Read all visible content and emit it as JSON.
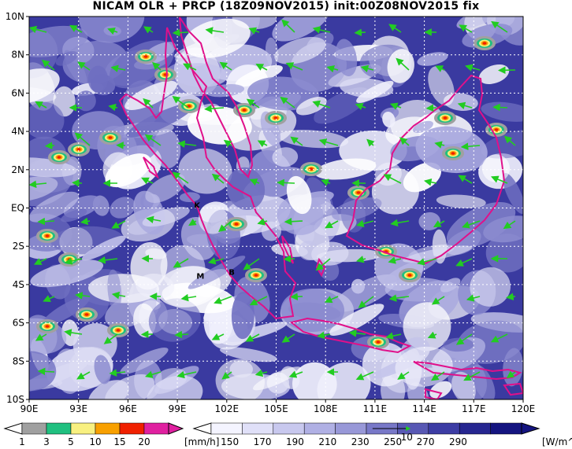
{
  "title": "NICAM OLR + PRCP (18Z09NOV2015) init:00Z08NOV2015 fix",
  "map": {
    "lon_ticks": [
      "90E",
      "93E",
      "96E",
      "99E",
      "102E",
      "105E",
      "108E",
      "111E",
      "114E",
      "117E",
      "120E"
    ],
    "lat_ticks": [
      "10N",
      "8N",
      "6N",
      "4N",
      "2N",
      "EQ",
      "2S",
      "4S",
      "6S",
      "8S",
      "10S"
    ],
    "lon_range": [
      90,
      120
    ],
    "lat_range": [
      -10,
      10
    ],
    "grid": true
  },
  "places": [
    {
      "label": "K",
      "lon": 100.2,
      "lat": 0.0
    },
    {
      "label": "M",
      "lon": 100.4,
      "lat": -3.7
    },
    {
      "label": "B",
      "lon": 102.3,
      "lat": -3.5
    }
  ],
  "precip_colorbar": {
    "labels": [
      "1",
      "3",
      "5",
      "10",
      "15",
      "20"
    ],
    "unit": "[mm/h]",
    "colors": [
      "#a0a0a0",
      "#20c080",
      "#f8f080",
      "#f8a000",
      "#f02000",
      "#e020a0"
    ]
  },
  "olr_colorbar": {
    "labels": [
      "150",
      "170",
      "190",
      "210",
      "230",
      "250",
      "270",
      "290"
    ],
    "unit": "[W/m^2]",
    "vector_label": "10",
    "colors": [
      "#f4f4ff",
      "#e0e0f8",
      "#c8c8ee",
      "#b0b0e4",
      "#9898d8",
      "#7878c8",
      "#5858b4",
      "#3c3ca4",
      "#262690",
      "#141480"
    ]
  },
  "colors": {
    "olr_cold": "#1a1a88",
    "olr_mid": "#5a5ab8",
    "olr_warm": "#ffffff",
    "coast": "#e0108a",
    "wind": "#22cc22",
    "grid": "#ffffff"
  }
}
